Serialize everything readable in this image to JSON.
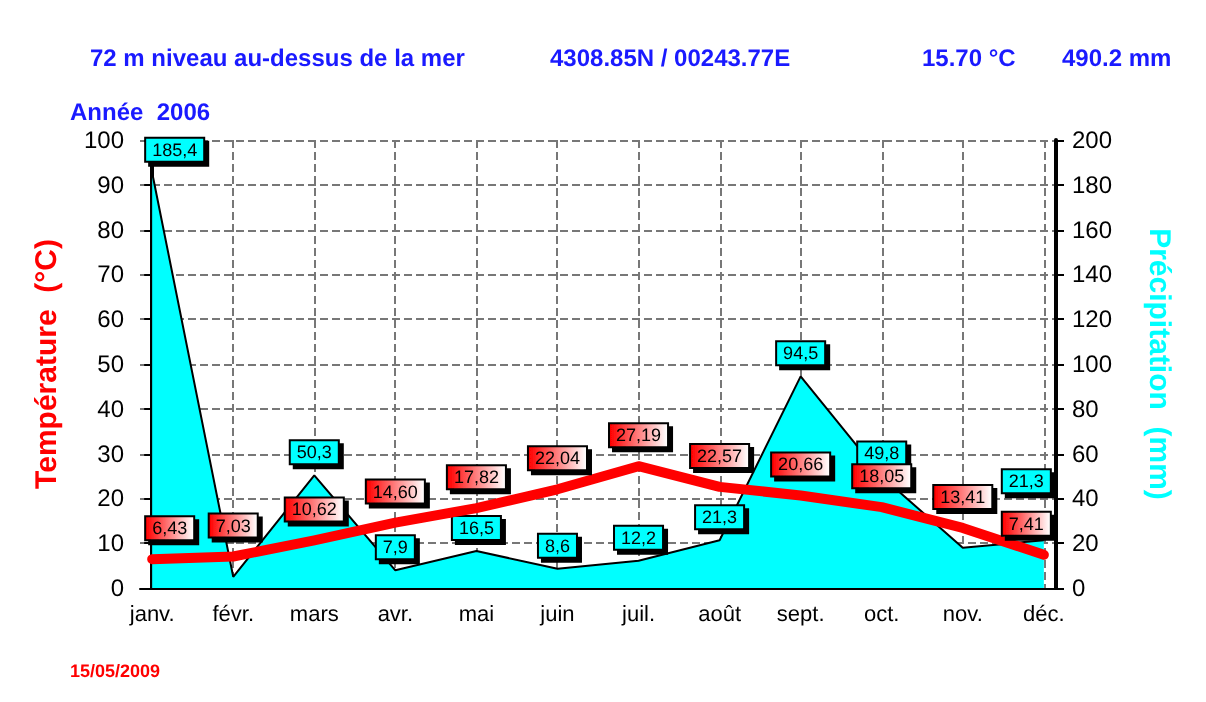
{
  "chart_data": {
    "type": "line",
    "title": "72 m niveau au-dessus de la mer",
    "subtitle": "Année  2006",
    "annotations": [
      "4308.85N / 00243.77E",
      "15.70 °C",
      "490.2 mm",
      "15/05/2009"
    ],
    "ylabel": "Température  (°C)",
    "y2label": "Précipitation  (mm)",
    "categories": [
      "janv.",
      "févr.",
      "mars",
      "avr.",
      "mai",
      "juin",
      "juil.",
      "août",
      "sept.",
      "oct.",
      "nov.",
      "déc."
    ],
    "series": [
      {
        "name": null,
        "type": "area",
        "axis": "y2",
        "color": "#00ffff",
        "values": [
          185.4,
          5,
          50.3,
          7.9,
          16.5,
          8.6,
          12.2,
          21.3,
          94.5,
          49.8,
          18,
          21.3
        ],
        "value_labels": [
          "185,4",
          null,
          "50,3",
          "7,9",
          "16,5",
          "8,6",
          "12,2",
          "21,3",
          "94,5",
          "49,8",
          null,
          "21,3"
        ]
      },
      {
        "name": null,
        "type": "line",
        "color": "#ff0000",
        "values": [
          6.43,
          7.03,
          10.62,
          14.6,
          17.82,
          22.04,
          27.19,
          22.57,
          20.66,
          18.05,
          13.41,
          7.41
        ],
        "value_labels": [
          "6,43",
          "7,03",
          "10,62",
          "14,60",
          "17,82",
          "22,04",
          "27,19",
          "22,57",
          "20,66",
          "18,05",
          "13,41",
          "7,41"
        ]
      }
    ],
    "ylim": [
      0,
      100
    ],
    "yticks": [
      0,
      10,
      20,
      30,
      40,
      50,
      60,
      70,
      80,
      90,
      100
    ],
    "y2lim": [
      0,
      200
    ],
    "y2ticks": [
      0,
      20,
      40,
      60,
      80,
      100,
      120,
      140,
      160,
      180,
      200
    ],
    "grid": true,
    "line_style": "solid",
    "marker": "none"
  }
}
